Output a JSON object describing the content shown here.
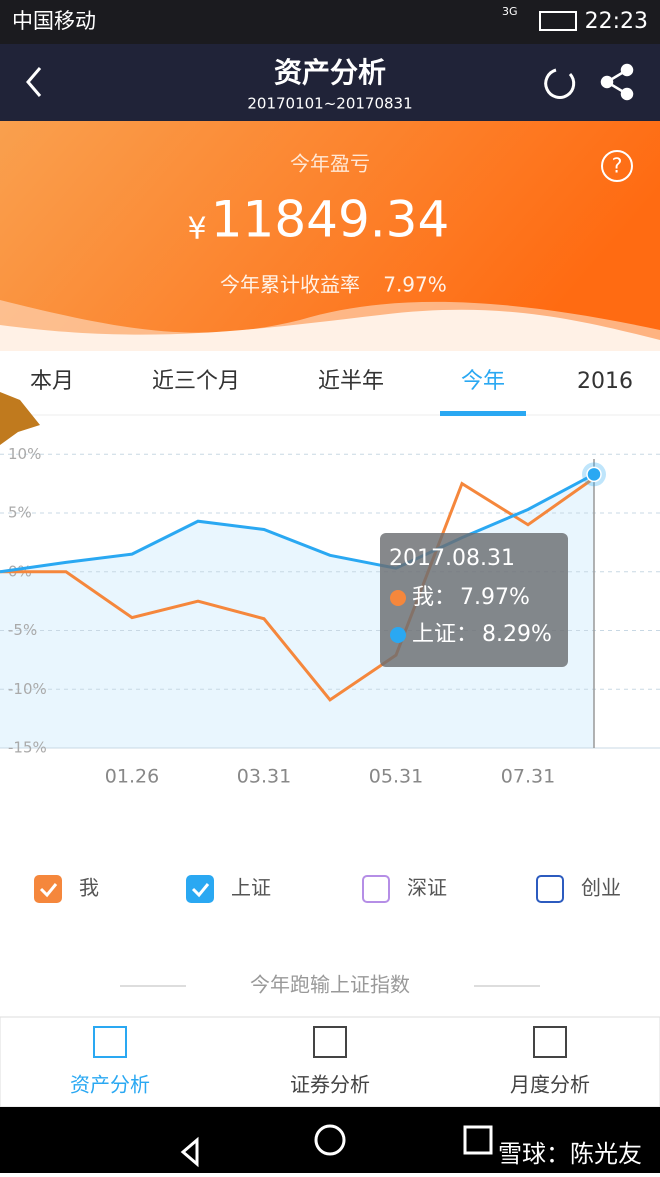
{
  "status_bar": {
    "carrier": "中国移动",
    "network": "3G",
    "time": "22:23"
  },
  "header": {
    "title": "资产分析",
    "subtitle": "20170101~20170831"
  },
  "summary": {
    "label": "今年盈亏",
    "currency": "¥",
    "amount": "11849.34",
    "rate_label": "今年累计收益率",
    "rate": "7.97%",
    "help": "?"
  },
  "tabs": {
    "items": [
      "本月",
      "近三个月",
      "近半年",
      "今年",
      "2016"
    ],
    "active": 3
  },
  "chart_data": {
    "type": "line",
    "categories": [
      null,
      null,
      "01.26",
      null,
      "03.31",
      null,
      "05.31",
      null,
      "07.31",
      null
    ],
    "series": [
      {
        "name": "我",
        "color": "#f5873c",
        "checked": true,
        "values": [
          0,
          0,
          -3.9,
          -2.5,
          -4.0,
          -10.9,
          -7.1,
          7.5,
          4.0,
          7.97
        ]
      },
      {
        "name": "上证",
        "color": "#2aa8f2",
        "checked": true,
        "values": [
          0,
          0.8,
          1.5,
          4.3,
          3.6,
          1.4,
          0.3,
          2.9,
          5.3,
          8.29
        ]
      }
    ],
    "extra_legend": [
      {
        "name": "深证",
        "color": "#b58ee6",
        "checked": false
      },
      {
        "name": "创业",
        "color": "#2c5bbf",
        "checked": false
      }
    ],
    "ylim": [
      -15,
      13
    ],
    "yticks": [
      {
        "value": 10,
        "label": "10%"
      },
      {
        "value": 5,
        "label": "5%"
      },
      {
        "value": 0,
        "label": "0%"
      },
      {
        "value": -5,
        "label": "-5%"
      },
      {
        "value": -10,
        "label": "-10%"
      },
      {
        "value": -15,
        "label": "-15%"
      }
    ],
    "grid": true,
    "tooltip": {
      "title": "2017.08.31",
      "items": [
        {
          "label": "我：",
          "value": "7.97%"
        },
        {
          "label": "上证：",
          "value": "8.29%"
        }
      ]
    }
  },
  "note": "今年跑输上证指数",
  "bottom_nav": {
    "items": [
      "资产分析",
      "证券分析",
      "月度分析"
    ],
    "active": 0
  },
  "watermark": "雪球：陈光友"
}
